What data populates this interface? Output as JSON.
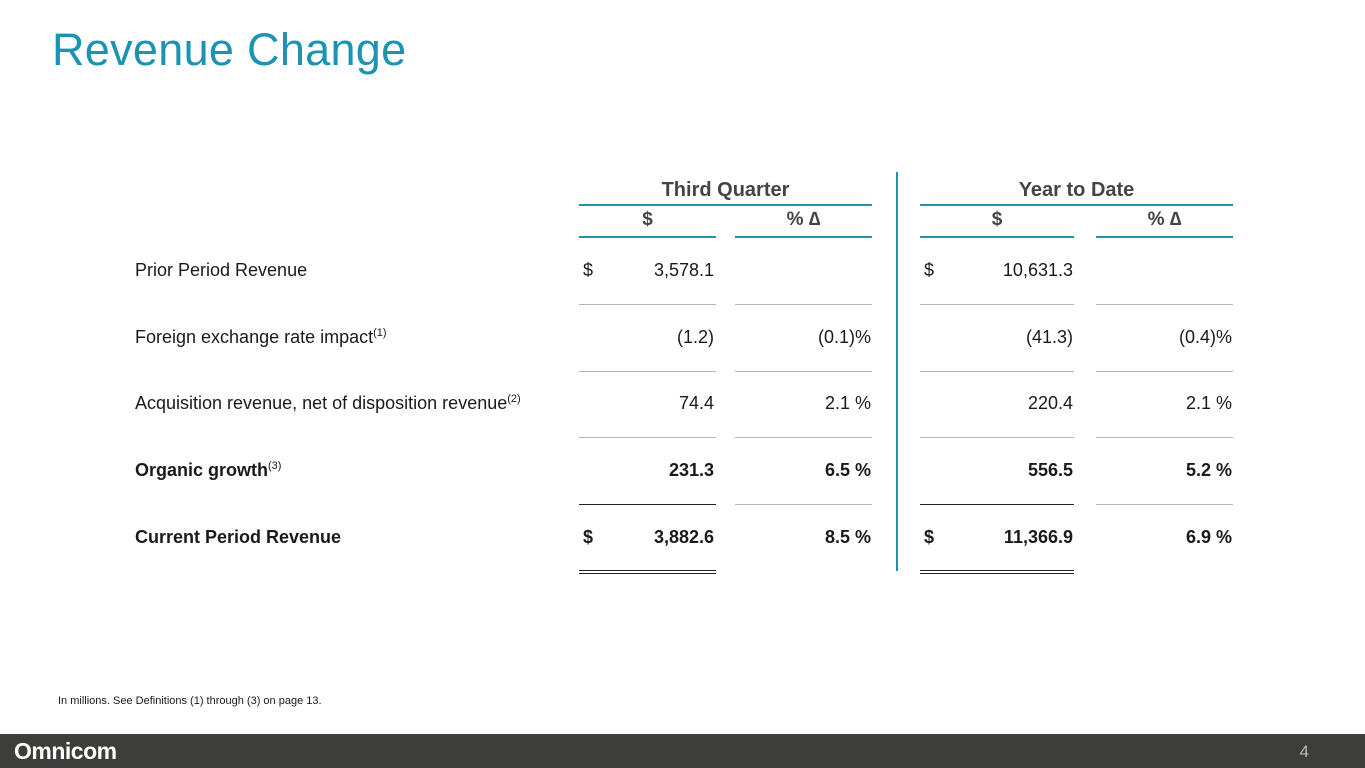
{
  "title": "Revenue Change",
  "table": {
    "groups": [
      "Third Quarter",
      "Year to Date"
    ],
    "columns": [
      "$",
      "% ∆",
      "$",
      "% ∆"
    ],
    "rows": [
      {
        "label": "Prior Period Revenue",
        "note": null,
        "bold": false,
        "cells": [
          "$",
          "3,578.1",
          null,
          "$",
          "10,631.3",
          null
        ]
      },
      {
        "label": "Foreign exchange rate impact",
        "note": "(1)",
        "bold": false,
        "cells": [
          null,
          "(1.2)",
          "(0.1)%",
          null,
          "(41.3)",
          "(0.4)%"
        ]
      },
      {
        "label": "Acquisition revenue, net of disposition revenue",
        "note": "(2)",
        "bold": false,
        "cells": [
          null,
          "74.4",
          "2.1 %",
          null,
          "220.4",
          "2.1 %"
        ]
      },
      {
        "label": "Organic growth",
        "note": "(3)",
        "bold": true,
        "cells": [
          null,
          "231.3",
          "6.5 %",
          null,
          "556.5",
          "5.2 %"
        ]
      },
      {
        "label": "Current Period Revenue",
        "note": null,
        "bold": true,
        "cells": [
          "$",
          "3,882.6",
          "8.5 %",
          "$",
          "11,366.9",
          "6.9 %"
        ]
      }
    ]
  },
  "footnote": "In millions.  See Definitions (1) through (3) on page 13.",
  "footer": {
    "logo": "Omnicom",
    "page": "4"
  }
}
